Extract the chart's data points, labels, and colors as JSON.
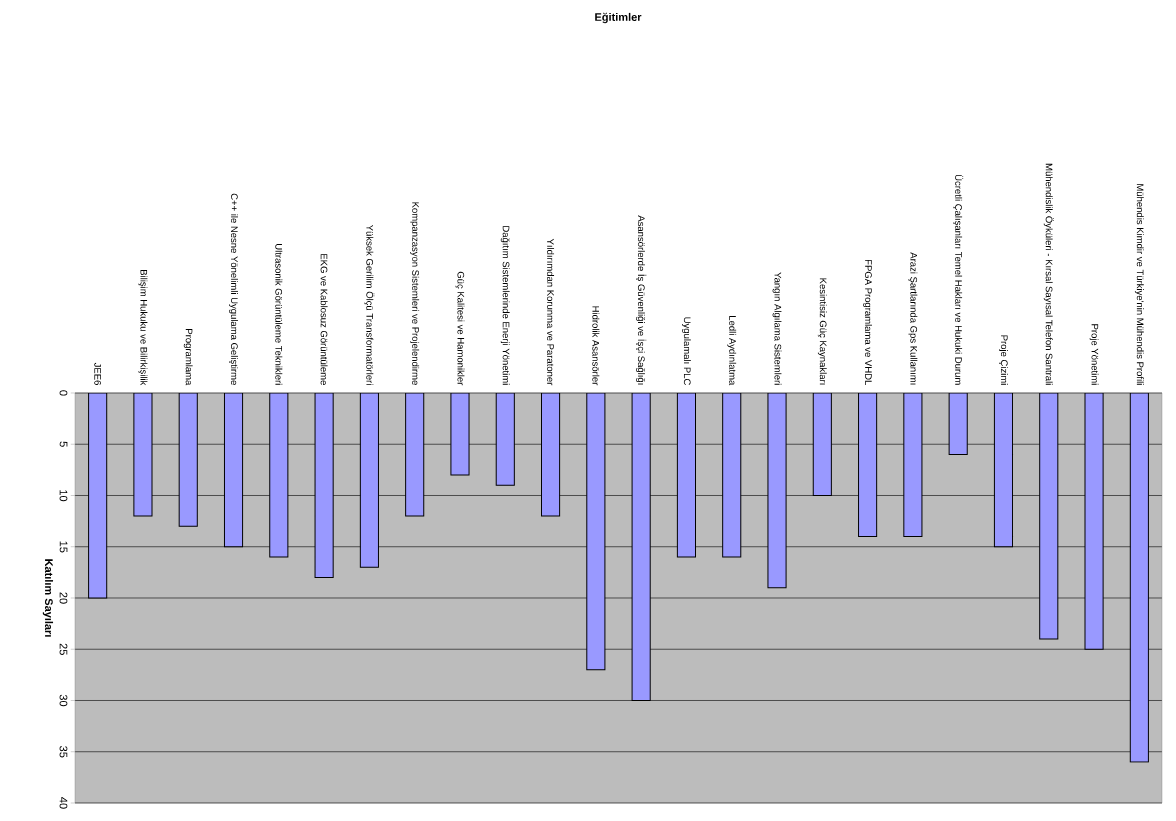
{
  "chart_data": {
    "type": "bar",
    "title": "Eğitimler",
    "ylabel": "Katılım Sayıları",
    "categories": [
      "JEE6",
      "Bilişim Hukuku ve Bilirkişilik",
      "Programlama",
      "C++ ile Nesne Yönelimli Uygulama Geliştirme",
      "Ultrasonik Görüntüleme Teknikleri",
      "EKG ve Kablosuz Görüntüleme",
      "Yüksek Gerilim Ölçü Transformatörleri",
      "Kompanzasyon Sistemleri ve Projelendirme",
      "Güç Kalitesi ve Hamonikler",
      "Dağıtım Sistemlerinde Enerji Yönetimi",
      "Yıldırımdan Korunma ve Paratoner",
      "Hidrolik Asansörler",
      "Asansörlerde İş Güvenliği ve İşçi Sağlığı",
      "Uygulamalı PLC",
      "Ledli Aydınlatma",
      "Yangın Algılama Sistemleri",
      "Kesintisiz Güç Kaynakları",
      "FPGA Programlama ve VHDL",
      "Arazi Şartlarında Gps Kullanımı",
      "Ücretli Çalışanları Temel Hakları ve Hukuki Durum",
      "Proje Çizimi",
      "Mühendislik Öyküleri - Kırsal Sayısal Telefon Santrali",
      "Proje Yönetimi",
      "Mühendis Kimdir ve Türkiye'nin Mühendis Profili"
    ],
    "values": [
      20,
      12,
      13,
      15,
      16,
      18,
      17,
      12,
      8,
      9,
      12,
      27,
      30,
      16,
      16,
      19,
      10,
      14,
      14,
      6,
      15,
      24,
      25,
      36
    ],
    "color": "#9999ff",
    "ylim": [
      40,
      0
    ],
    "yticks": [
      0,
      5,
      10,
      15,
      20,
      25,
      30,
      35,
      40
    ],
    "grid": "y"
  }
}
